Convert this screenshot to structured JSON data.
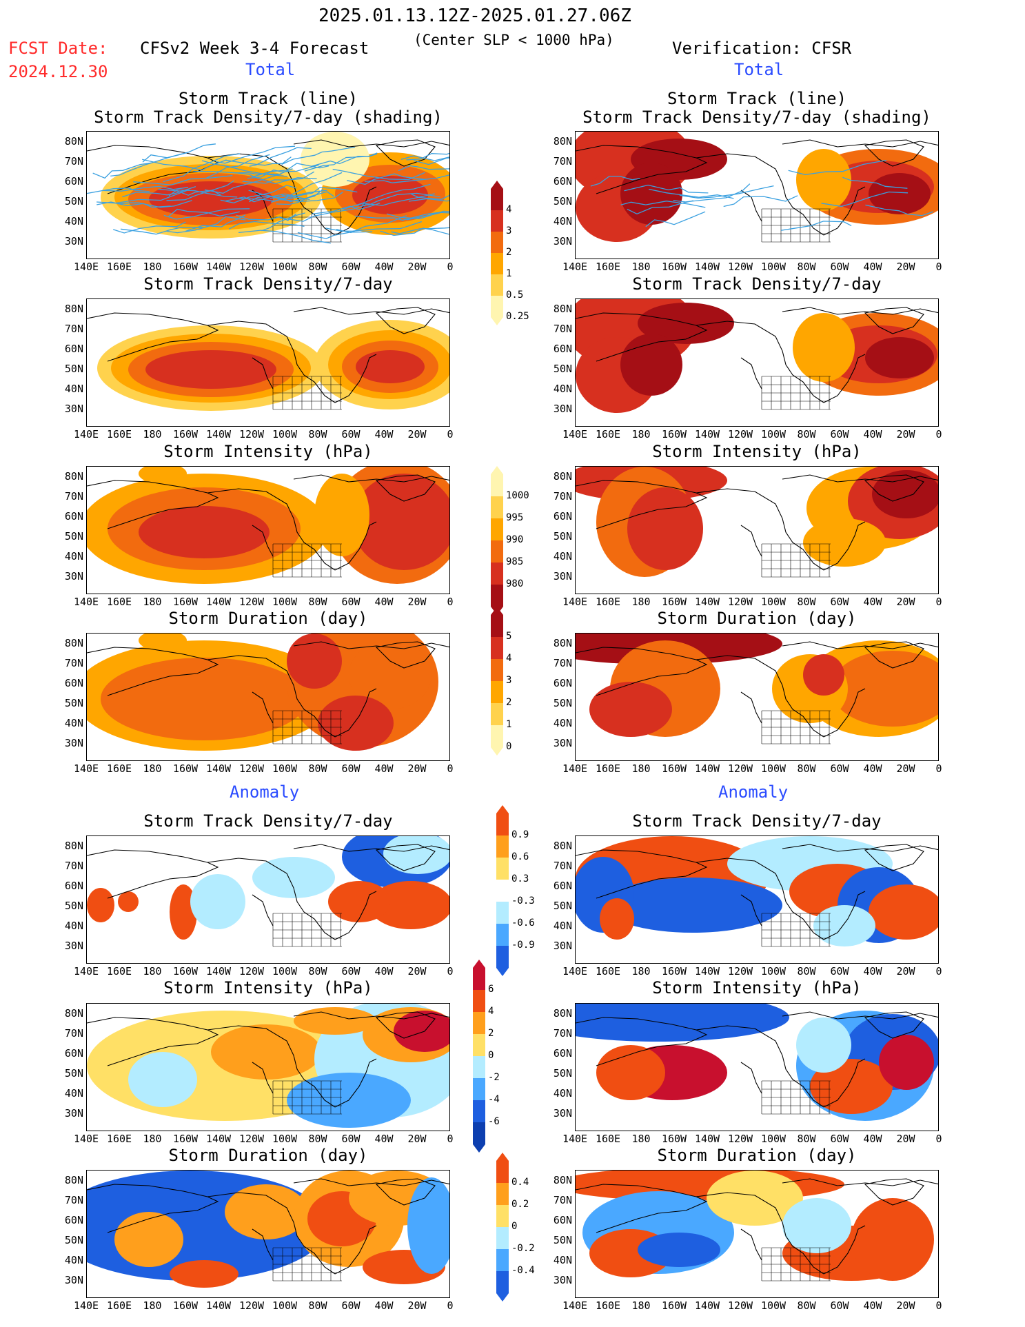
{
  "header": {
    "date_range": "2025.01.13.12Z-2025.01.27.06Z",
    "subtitle": "(Center SLP < 1000 hPa)",
    "fcst_label": "FCST Date:",
    "fcst_date": "2024.12.30",
    "forecast_title": "CFSv2 Week 3-4 Forecast",
    "verification_title": "Verification: CFSR"
  },
  "sections": {
    "total": "Total",
    "anomaly": "Anomaly"
  },
  "panel_titles": {
    "track_line": "Storm Track (line)",
    "track_density_shading": "Storm Track Density/7-day (shading)",
    "track_density": "Storm Track Density/7-day",
    "intensity": "Storm Intensity (hPa)",
    "duration": "Storm Duration (day)"
  },
  "axes": {
    "lat_labels": [
      "80N",
      "70N",
      "60N",
      "50N",
      "40N",
      "30N"
    ],
    "lon_labels": [
      "140E",
      "160E",
      "180",
      "160W",
      "140W",
      "120W",
      "100W",
      "80W",
      "60W",
      "40W",
      "20W",
      "0"
    ]
  },
  "colorbars": {
    "density_total": {
      "labels": [
        "4",
        "3",
        "2",
        "1",
        "0.5",
        "0.25"
      ],
      "colors": [
        "#a50f15",
        "#d7301f",
        "#f26b0f",
        "#ffa600",
        "#ffd24d",
        "#fff5b0"
      ]
    },
    "intensity_total": {
      "labels": [
        "1000",
        "995",
        "990",
        "985",
        "980"
      ],
      "colors": [
        "#fff5b0",
        "#ffd24d",
        "#ffa600",
        "#f26b0f",
        "#d7301f",
        "#a50f15"
      ]
    },
    "duration_total": {
      "labels": [
        "5",
        "4",
        "3",
        "2",
        "1",
        "0"
      ],
      "colors": [
        "#a50f15",
        "#d7301f",
        "#f26b0f",
        "#ffa600",
        "#ffd24d",
        "#fff5b0"
      ]
    },
    "density_anom": {
      "labels": [
        "0.9",
        "0.6",
        "0.3",
        "-0.3",
        "-0.6",
        "-0.9"
      ],
      "colors": [
        "#f04e12",
        "#ff9f1c",
        "#ffe066",
        "#ffffff",
        "#b3ecff",
        "#4aa8ff",
        "#1e5fe0"
      ]
    },
    "intensity_anom": {
      "labels": [
        "6",
        "4",
        "2",
        "0",
        "-2",
        "-4",
        "-6"
      ],
      "colors": [
        "#c8102e",
        "#f04e12",
        "#ff9f1c",
        "#ffe066",
        "#b3ecff",
        "#4aa8ff",
        "#1e5fe0",
        "#0d3fb0"
      ]
    },
    "duration_anom": {
      "labels": [
        "0.4",
        "0.2",
        "0",
        "-0.2",
        "-0.4"
      ],
      "colors": [
        "#f04e12",
        "#ff9f1c",
        "#ffe066",
        "#b3ecff",
        "#4aa8ff",
        "#1e5fe0"
      ]
    }
  }
}
